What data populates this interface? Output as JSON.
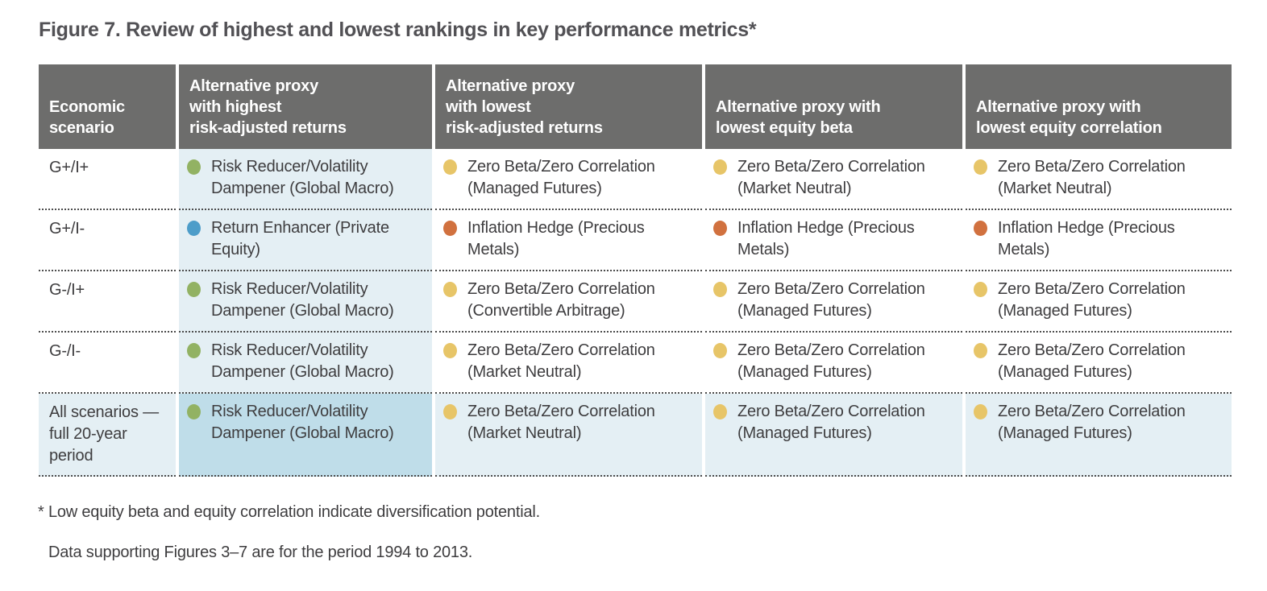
{
  "figure": {
    "title": "Figure 7. Review of highest and lowest rankings in key performance metrics*",
    "footnotes": {
      "star": "* Low equity beta and equity correlation indicate diversification potential.",
      "period": "Data supporting Figures 3–7 are for the period 1994 to 2013."
    }
  },
  "table": {
    "columns": [
      {
        "id": "economic-scenario",
        "label": "Economic\nscenario"
      },
      {
        "id": "highest-risk-adjusted-returns",
        "label": "Alternative proxy\nwith highest\nrisk-adjusted returns"
      },
      {
        "id": "lowest-risk-adjusted-returns",
        "label": "Alternative proxy\nwith lowest\nrisk-adjusted returns"
      },
      {
        "id": "lowest-equity-beta",
        "label": "Alternative proxy with\nlowest equity beta"
      },
      {
        "id": "lowest-equity-correlation",
        "label": "Alternative proxy with\nlowest equity correlation"
      }
    ],
    "rows": [
      {
        "scenario": "G+/I+",
        "summary": false,
        "cells": [
          {
            "dot": "green",
            "text": "Risk Reducer/Volatility Dampener (Global Macro)"
          },
          {
            "dot": "yellow",
            "text": "Zero Beta/Zero Correlation (Managed Futures)"
          },
          {
            "dot": "yellow",
            "text": "Zero Beta/Zero Correlation (Market Neutral)"
          },
          {
            "dot": "yellow",
            "text": "Zero Beta/Zero Correlation (Market Neutral)"
          }
        ]
      },
      {
        "scenario": "G+/I-",
        "summary": false,
        "cells": [
          {
            "dot": "blue",
            "text": "Return Enhancer (Private Equity)"
          },
          {
            "dot": "orange",
            "text": "Inflation Hedge (Precious Metals)"
          },
          {
            "dot": "orange",
            "text": "Inflation Hedge (Precious Metals)"
          },
          {
            "dot": "orange",
            "text": "Inflation Hedge (Precious Metals)"
          }
        ]
      },
      {
        "scenario": "G-/I+",
        "summary": false,
        "cells": [
          {
            "dot": "green",
            "text": "Risk Reducer/Volatility Dampener (Global Macro)"
          },
          {
            "dot": "yellow",
            "text": "Zero Beta/Zero Correlation (Convertible Arbitrage)"
          },
          {
            "dot": "yellow",
            "text": "Zero Beta/Zero Correlation (Managed Futures)"
          },
          {
            "dot": "yellow",
            "text": "Zero Beta/Zero Correlation (Managed Futures)"
          }
        ]
      },
      {
        "scenario": "G-/I-",
        "summary": false,
        "cells": [
          {
            "dot": "green",
            "text": "Risk Reducer/Volatility Dampener (Global Macro)"
          },
          {
            "dot": "yellow",
            "text": "Zero Beta/Zero Correlation (Market Neutral)"
          },
          {
            "dot": "yellow",
            "text": "Zero Beta/Zero Correlation (Managed Futures)"
          },
          {
            "dot": "yellow",
            "text": "Zero Beta/Zero Correlation (Managed Futures)"
          }
        ]
      },
      {
        "scenario": "All scenarios —\nfull 20-year\nperiod",
        "summary": true,
        "cells": [
          {
            "dot": "green",
            "text": "Risk Reducer/Volatility Dampener (Global Macro)"
          },
          {
            "dot": "yellow",
            "text": "Zero Beta/Zero Correlation (Market Neutral)"
          },
          {
            "dot": "yellow",
            "text": "Zero Beta/Zero Correlation (Managed Futures)"
          },
          {
            "dot": "yellow",
            "text": "Zero Beta/Zero Correlation (Managed Futures)"
          }
        ]
      }
    ],
    "dot_colors": {
      "green": "#92b263",
      "blue": "#4d9dc9",
      "yellow": "#e7c568",
      "orange": "#d1713f"
    },
    "colors": {
      "header_bg": "#6d6d6c",
      "header_text": "#ffffff",
      "highlight_column_bg": "#e4eff4",
      "summary_row_bg": "#e4eff4",
      "summary_highlight_bg": "#bfdde9",
      "body_text": "#3e3d3f",
      "title_text": "#525155",
      "dotted_line": "#4c4c4c"
    }
  }
}
